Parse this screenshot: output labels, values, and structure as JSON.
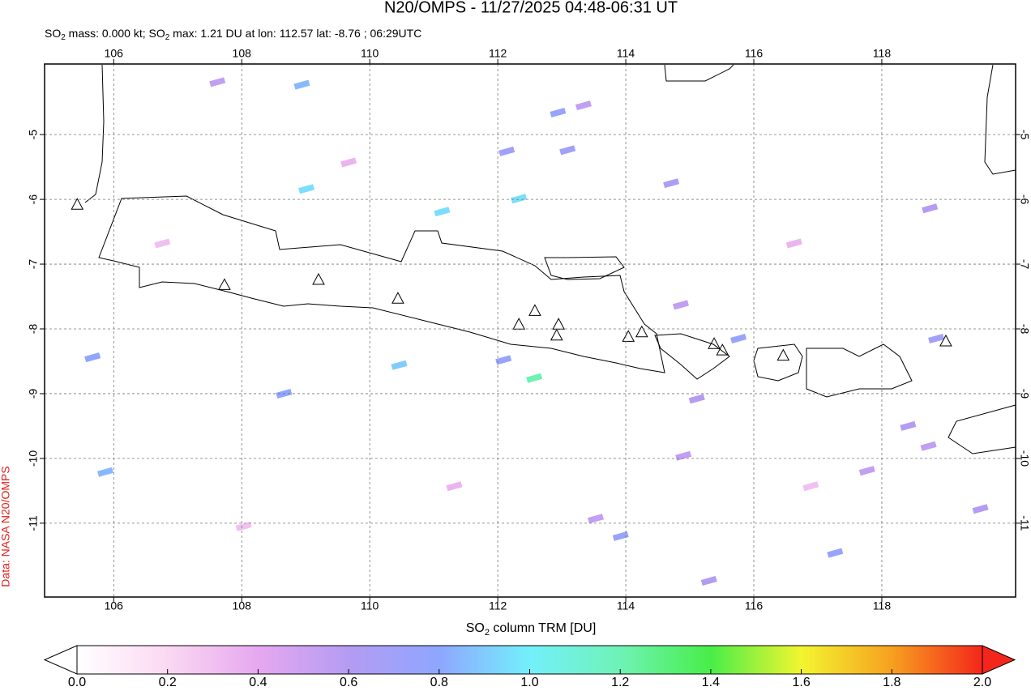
{
  "chart_data": {
    "type": "map",
    "title": "N20/OMPS - 11/27/2025 04:48-06:31 UT",
    "subtitle_parts": [
      "SO",
      "2",
      " mass: 0.000 kt; SO",
      "2",
      " max: 1.21 DU at lon: 112.57 lat: -8.76 ; 06:29UTC"
    ],
    "source": "Data: NASA N20/OMPS",
    "xlim": [
      104.92,
      120.09
    ],
    "ylim": [
      -12.14,
      -3.91
    ],
    "xticks": [
      106,
      108,
      110,
      112,
      114,
      116,
      118
    ],
    "yticks": [
      -5,
      -6,
      -7,
      -8,
      -9,
      -10,
      -11
    ],
    "grid": true,
    "pixels": [
      {
        "lon": 112.57,
        "lat": -8.76,
        "value": 1.21
      },
      {
        "lon": 112.33,
        "lat": -5.99,
        "value": 0.95
      },
      {
        "lon": 111.13,
        "lat": -6.19,
        "value": 0.95
      },
      {
        "lon": 109.01,
        "lat": -5.84,
        "value": 0.95
      },
      {
        "lon": 110.46,
        "lat": -8.56,
        "value": 0.9
      },
      {
        "lon": 108.94,
        "lat": -4.23,
        "value": 0.85
      },
      {
        "lon": 112.94,
        "lat": -4.66,
        "value": 0.75
      },
      {
        "lon": 113.09,
        "lat": -5.24,
        "value": 0.7
      },
      {
        "lon": 112.14,
        "lat": -5.26,
        "value": 0.7
      },
      {
        "lon": 114.71,
        "lat": -5.75,
        "value": 0.65
      },
      {
        "lon": 115.76,
        "lat": -8.15,
        "value": 0.75
      },
      {
        "lon": 118.85,
        "lat": -8.15,
        "value": 0.7
      },
      {
        "lon": 117.27,
        "lat": -11.46,
        "value": 0.75
      },
      {
        "lon": 113.92,
        "lat": -11.2,
        "value": 0.75
      },
      {
        "lon": 112.09,
        "lat": -8.48,
        "value": 0.75
      },
      {
        "lon": 115.11,
        "lat": -9.08,
        "value": 0.6
      },
      {
        "lon": 105.67,
        "lat": -8.44,
        "value": 0.8
      },
      {
        "lon": 108.66,
        "lat": -9.0,
        "value": 0.8
      },
      {
        "lon": 105.87,
        "lat": -10.21,
        "value": 0.85
      },
      {
        "lon": 119.54,
        "lat": -10.78,
        "value": 0.6
      },
      {
        "lon": 118.75,
        "lat": -6.14,
        "value": 0.6
      },
      {
        "lon": 118.41,
        "lat": -9.5,
        "value": 0.6
      },
      {
        "lon": 118.73,
        "lat": -9.81,
        "value": 0.55
      },
      {
        "lon": 114.9,
        "lat": -9.96,
        "value": 0.55
      },
      {
        "lon": 115.3,
        "lat": -11.89,
        "value": 0.6
      },
      {
        "lon": 107.62,
        "lat": -4.19,
        "value": 0.55
      },
      {
        "lon": 113.34,
        "lat": -4.55,
        "value": 0.55
      },
      {
        "lon": 114.86,
        "lat": -7.63,
        "value": 0.55
      },
      {
        "lon": 117.77,
        "lat": -10.19,
        "value": 0.55
      },
      {
        "lon": 113.53,
        "lat": -10.93,
        "value": 0.55
      },
      {
        "lon": 106.76,
        "lat": -6.68,
        "value": 0.3
      },
      {
        "lon": 111.32,
        "lat": -10.43,
        "value": 0.35
      },
      {
        "lon": 116.63,
        "lat": -6.68,
        "value": 0.35
      },
      {
        "lon": 116.89,
        "lat": -10.43,
        "value": 0.3
      },
      {
        "lon": 108.03,
        "lat": -11.05,
        "value": 0.3
      },
      {
        "lon": 109.67,
        "lat": -5.43,
        "value": 0.35
      }
    ],
    "volcanoes": [
      {
        "lon": 105.43,
        "lat": -6.09
      },
      {
        "lon": 107.73,
        "lat": -7.33
      },
      {
        "lon": 109.2,
        "lat": -7.25
      },
      {
        "lon": 110.44,
        "lat": -7.54
      },
      {
        "lon": 112.33,
        "lat": -7.94
      },
      {
        "lon": 112.58,
        "lat": -7.73
      },
      {
        "lon": 112.95,
        "lat": -7.94
      },
      {
        "lon": 112.92,
        "lat": -8.11
      },
      {
        "lon": 114.04,
        "lat": -8.13
      },
      {
        "lon": 114.25,
        "lat": -8.06
      },
      {
        "lon": 115.38,
        "lat": -8.24
      },
      {
        "lon": 115.51,
        "lat": -8.34
      },
      {
        "lon": 116.46,
        "lat": -8.42
      },
      {
        "lon": 119.0,
        "lat": -8.2
      }
    ],
    "colorbar": {
      "label_parts": [
        "SO",
        "2",
        " column TRM [DU]"
      ],
      "lim": [
        0,
        2
      ],
      "ticks": [
        {
          "value": 0,
          "label": "0.0"
        },
        {
          "value": 0.2,
          "label": "0.2"
        },
        {
          "value": 0.4,
          "label": "0.4"
        },
        {
          "value": 0.6,
          "label": "0.6"
        },
        {
          "value": 0.8,
          "label": "0.8"
        },
        {
          "value": 1,
          "label": "1.0"
        },
        {
          "value": 1.2,
          "label": "1.2"
        },
        {
          "value": 1.4,
          "label": "1.4"
        },
        {
          "value": 1.6,
          "label": "1.6"
        },
        {
          "value": 1.8,
          "label": "1.8"
        },
        {
          "value": 2,
          "label": "2.0"
        }
      ],
      "colors": [
        "#ffffff",
        "#fbd8f2",
        "#e6a8f0",
        "#b49cf2",
        "#8fa6ff",
        "#73f0fb",
        "#6ff2b6",
        "#48ee48",
        "#f3f530",
        "#f7a020",
        "#f4261b"
      ]
    }
  }
}
